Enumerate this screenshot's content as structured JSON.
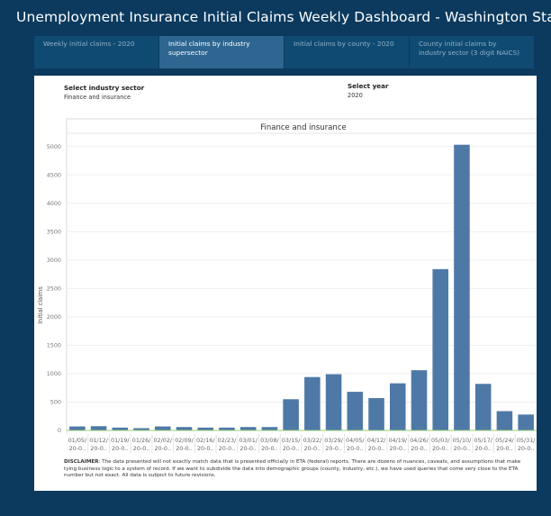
{
  "header": {
    "title": "Unemployment Insurance Initial Claims Weekly Dashboard  - Washington State"
  },
  "tabs": [
    {
      "label": "Weekly initial claims - 2020",
      "active": false
    },
    {
      "label": "Initial claims by industry supersector",
      "active": true
    },
    {
      "label": "Initial claims by county - 2020",
      "active": false
    },
    {
      "label": "County initial claims by industry sector (3 digit NAICS)",
      "active": false
    }
  ],
  "filters": {
    "industry_label": "Select industry sector",
    "industry_value": "Finance and insurance",
    "year_label": "Select year",
    "year_value": "2020"
  },
  "chart_data": {
    "type": "bar",
    "title": "Finance and insurance",
    "xlabel": "",
    "ylabel": "Initial claims",
    "ylim": [
      0,
      5200
    ],
    "yticks": [
      0,
      500,
      1000,
      1500,
      2000,
      2500,
      3000,
      3500,
      4000,
      4500,
      5000
    ],
    "categories": [
      "01/05/",
      "01/12/",
      "01/19/",
      "01/26/",
      "02/02/",
      "02/09/",
      "02/16/",
      "02/23/",
      "03/01/",
      "03/08/",
      "03/15/",
      "03/22/",
      "03/29/",
      "04/05/",
      "04/12/",
      "04/19/",
      "04/26/",
      "05/03/",
      "05/10/",
      "05/17/",
      "05/24/",
      "05/31/"
    ],
    "sublabels": [
      "20-0..",
      "20-0..",
      "20-0..",
      "20-0..",
      "20-0..",
      "20-0..",
      "20-0..",
      "20-0..",
      "20-0..",
      "20-0..",
      "20-0..",
      "20-0..",
      "20-0..",
      "20-0..",
      "20-0..",
      "20-0..",
      "20-0..",
      "20-0..",
      "20-0..",
      "20-0..",
      "20-0..",
      "20-0.."
    ],
    "values": [
      70,
      75,
      50,
      40,
      70,
      60,
      50,
      50,
      60,
      60,
      550,
      940,
      990,
      680,
      570,
      830,
      1060,
      2840,
      5030,
      820,
      340,
      280
    ],
    "bar_color": "#4e79a7",
    "grid": true
  },
  "disclaimer": {
    "label": "DISCLAIMER",
    "text": ": The data presented will not exactly match data that is presented officially in ETA (federal) reports. There are dozens of nuances, caveats, and assumptions that make tying business logic to a system of record. If we want to subdivide the data into demographic groups (county, industry, etc.), we have used queries that come very close to the ETA number but not exact.  All data is subject to future revisions."
  }
}
